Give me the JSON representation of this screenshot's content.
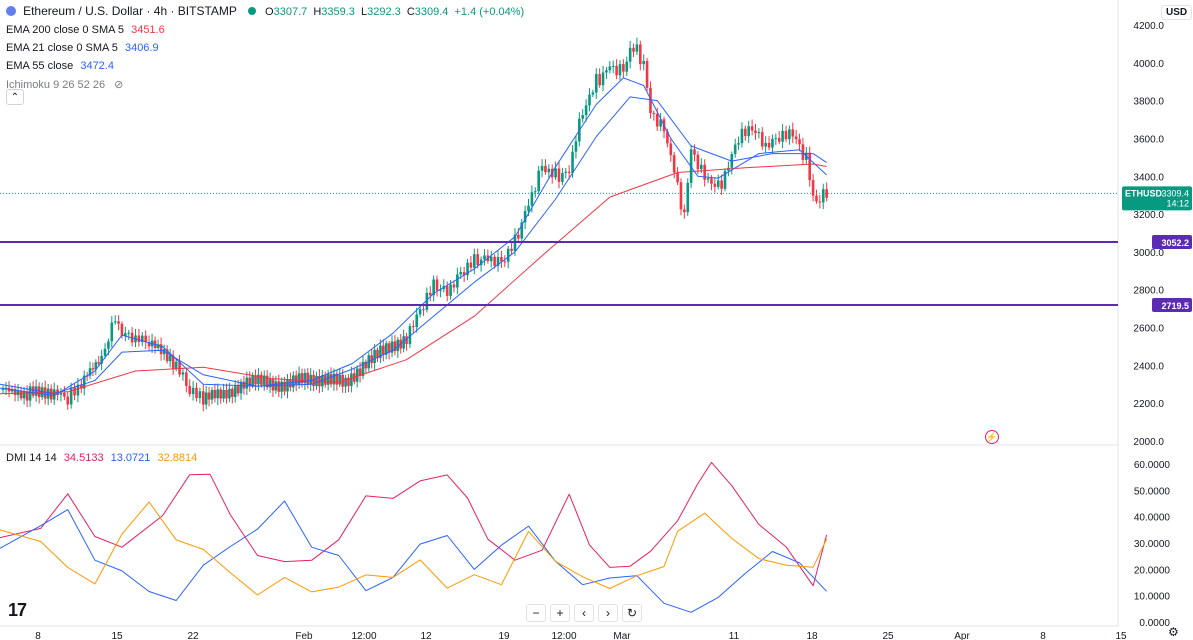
{
  "header": {
    "symbol": "Ethereum / U.S. Dollar · 4h · BITSTAMP",
    "open_label": "O",
    "open": "3307.7",
    "high_label": "H",
    "high": "3359.3",
    "low_label": "L",
    "low": "3292.3",
    "close_label": "C",
    "close": "3309.4",
    "change": "+1.4 (+0.04%)",
    "currency": "USD"
  },
  "indicators": [
    {
      "label": "EMA 200 close 0 SMA 5",
      "value": "3451.6",
      "color": "#f23645"
    },
    {
      "label": "EMA 21 close 0 SMA 5",
      "value": "3406.9",
      "color": "#2962ff"
    },
    {
      "label": "EMA 55 close",
      "value": "3472.4",
      "color": "#2962ff"
    },
    {
      "label": "Ichimoku 9 26 52 26",
      "value": "",
      "color": "#131722"
    }
  ],
  "dmi_legend": {
    "label": "DMI 14 14",
    "plus": "34.5133",
    "plus_color": "#e91e63",
    "minus": "13.0721",
    "minus_color": "#2962ff",
    "adx": "32.8814",
    "adx_color": "#ff9800"
  },
  "price_scale": [
    "4200.0",
    "4000.0",
    "3800.0",
    "3600.0",
    "3400.0",
    "3200.0",
    "3000.0",
    "2800.0",
    "2600.0",
    "2400.0",
    "2200.0",
    "2000.0"
  ],
  "dmi_scale": [
    "60.0000",
    "50.0000",
    "40.0000",
    "30.0000",
    "20.0000",
    "10.0000",
    "0.0000"
  ],
  "time_axis": [
    "8",
    "15",
    "22",
    "Feb",
    "12:00",
    "12",
    "19",
    "12:00",
    "Mar",
    "11",
    "18",
    "25",
    "Apr",
    "8",
    "15"
  ],
  "price_tags": {
    "last": {
      "symbol": "ETHUSD",
      "price": "3309.4",
      "countdown": "14:12"
    },
    "level_upper": "3052.2",
    "level_lower": "2719.5"
  },
  "logo_text": "17",
  "zoom_controls": [
    "−",
    "+",
    "‹",
    "›",
    "↻"
  ],
  "chart_data": {
    "type": "line",
    "title": "Ethereum / U.S. Dollar · 4h · BITSTAMP",
    "x_ticks": [
      "8",
      "15",
      "22",
      "Feb",
      "12:00",
      "12",
      "19",
      "12:00",
      "Mar",
      "11",
      "18",
      "25",
      "Apr",
      "8",
      "15"
    ],
    "ylim": [
      2000,
      4200
    ],
    "horizontal_levels": [
      3052.2,
      2719.5
    ],
    "price_path": [
      [
        0,
        2270
      ],
      [
        4,
        2250
      ],
      [
        8,
        2260
      ],
      [
        10,
        2225
      ],
      [
        12,
        2300
      ],
      [
        15,
        2450
      ],
      [
        17,
        2650
      ],
      [
        18,
        2560
      ],
      [
        20,
        2540
      ],
      [
        22,
        2520
      ],
      [
        26,
        2400
      ],
      [
        28,
        2260
      ],
      [
        30,
        2220
      ],
      [
        33,
        2250
      ],
      [
        36,
        2300
      ],
      [
        39,
        2320
      ],
      [
        42,
        2290
      ],
      [
        45,
        2330
      ],
      [
        48,
        2330
      ],
      [
        51,
        2300
      ],
      [
        54,
        2420
      ],
      [
        57,
        2480
      ],
      [
        60,
        2550
      ],
      [
        62,
        2680
      ],
      [
        64,
        2820
      ],
      [
        66,
        2780
      ],
      [
        68,
        2880
      ],
      [
        70,
        2950
      ],
      [
        72,
        2960
      ],
      [
        74,
        2940
      ],
      [
        76,
        3050
      ],
      [
        78,
        3250
      ],
      [
        80,
        3450
      ],
      [
        82,
        3400
      ],
      [
        84,
        3420
      ],
      [
        85,
        3600
      ],
      [
        86,
        3750
      ],
      [
        88,
        3900
      ],
      [
        90,
        3980
      ],
      [
        92,
        3960
      ],
      [
        93,
        4060
      ],
      [
        94,
        4080
      ],
      [
        95,
        3980
      ],
      [
        96,
        3750
      ],
      [
        98,
        3650
      ],
      [
        99,
        3500
      ],
      [
        100,
        3350
      ],
      [
        101,
        3180
      ],
      [
        102,
        3550
      ],
      [
        104,
        3400
      ],
      [
        106,
        3350
      ],
      [
        107,
        3400
      ],
      [
        109,
        3600
      ],
      [
        111,
        3650
      ],
      [
        113,
        3550
      ],
      [
        115,
        3600
      ],
      [
        117,
        3620
      ],
      [
        118,
        3550
      ],
      [
        119,
        3500
      ],
      [
        120,
        3280
      ],
      [
        121,
        3280
      ],
      [
        122,
        3309
      ]
    ],
    "series": [
      {
        "name": "EMA 200 close 0 SMA 5",
        "color": "#f23645",
        "points": [
          [
            0,
            2250
          ],
          [
            10,
            2260
          ],
          [
            20,
            2370
          ],
          [
            30,
            2390
          ],
          [
            40,
            2330
          ],
          [
            50,
            2310
          ],
          [
            60,
            2430
          ],
          [
            70,
            2660
          ],
          [
            80,
            2980
          ],
          [
            90,
            3290
          ],
          [
            100,
            3420
          ],
          [
            110,
            3445
          ],
          [
            120,
            3465
          ],
          [
            122,
            3451.6
          ]
        ]
      },
      {
        "name": "EMA 21 close 0 SMA 5",
        "color": "#2962ff",
        "points": [
          [
            0,
            2280
          ],
          [
            8,
            2240
          ],
          [
            14,
            2370
          ],
          [
            18,
            2560
          ],
          [
            24,
            2500
          ],
          [
            30,
            2300
          ],
          [
            38,
            2290
          ],
          [
            46,
            2320
          ],
          [
            52,
            2410
          ],
          [
            58,
            2570
          ],
          [
            64,
            2780
          ],
          [
            70,
            2910
          ],
          [
            76,
            3080
          ],
          [
            82,
            3450
          ],
          [
            88,
            3780
          ],
          [
            92,
            3920
          ],
          [
            95,
            3880
          ],
          [
            99,
            3600
          ],
          [
            103,
            3400
          ],
          [
            106,
            3390
          ],
          [
            112,
            3520
          ],
          [
            118,
            3540
          ],
          [
            122,
            3406.9
          ]
        ]
      },
      {
        "name": "EMA 55 close",
        "color": "#2962ff",
        "points": [
          [
            0,
            2300
          ],
          [
            8,
            2250
          ],
          [
            14,
            2320
          ],
          [
            18,
            2470
          ],
          [
            24,
            2480
          ],
          [
            30,
            2350
          ],
          [
            38,
            2290
          ],
          [
            46,
            2300
          ],
          [
            52,
            2380
          ],
          [
            58,
            2480
          ],
          [
            64,
            2660
          ],
          [
            70,
            2840
          ],
          [
            76,
            3000
          ],
          [
            82,
            3280
          ],
          [
            88,
            3610
          ],
          [
            93,
            3820
          ],
          [
            97,
            3800
          ],
          [
            102,
            3560
          ],
          [
            108,
            3480
          ],
          [
            114,
            3520
          ],
          [
            120,
            3520
          ],
          [
            122,
            3472.4
          ]
        ]
      }
    ],
    "dmi": {
      "ylim": [
        0,
        60
      ],
      "series": [
        {
          "name": "DMI +",
          "color": "#e91e63",
          "value": "34.5133",
          "points": [
            [
              0,
              32
            ],
            [
              6,
              35
            ],
            [
              10,
              48
            ],
            [
              14,
              34
            ],
            [
              18,
              27
            ],
            [
              24,
              42
            ],
            [
              28,
              55
            ],
            [
              31,
              55
            ],
            [
              34,
              42
            ],
            [
              38,
              25
            ],
            [
              42,
              22
            ],
            [
              46,
              25
            ],
            [
              50,
              30
            ],
            [
              54,
              48
            ],
            [
              58,
              48
            ],
            [
              62,
              52
            ],
            [
              66,
              57
            ],
            [
              69,
              48
            ],
            [
              72,
              30
            ],
            [
              76,
              24
            ],
            [
              80,
              28
            ],
            [
              84,
              47
            ],
            [
              87,
              30
            ],
            [
              90,
              22
            ],
            [
              93,
              20
            ],
            [
              96,
              26
            ],
            [
              100,
              40
            ],
            [
              103,
              52
            ],
            [
              105,
              59
            ],
            [
              108,
              52
            ],
            [
              112,
              38
            ],
            [
              116,
              27
            ],
            [
              120,
              15
            ],
            [
              122,
              34.5
            ]
          ]
        },
        {
          "name": "DMI −",
          "color": "#2962ff",
          "value": "13.0721",
          "points": [
            [
              0,
              28
            ],
            [
              6,
              36
            ],
            [
              10,
              42
            ],
            [
              14,
              25
            ],
            [
              18,
              18
            ],
            [
              22,
              12
            ],
            [
              26,
              9
            ],
            [
              30,
              20
            ],
            [
              34,
              30
            ],
            [
              38,
              35
            ],
            [
              42,
              45
            ],
            [
              46,
              30
            ],
            [
              50,
              24
            ],
            [
              54,
              12
            ],
            [
              58,
              18
            ],
            [
              62,
              28
            ],
            [
              66,
              34
            ],
            [
              70,
              20
            ],
            [
              74,
              28
            ],
            [
              78,
              38
            ],
            [
              82,
              22
            ],
            [
              86,
              14
            ],
            [
              90,
              18
            ],
            [
              94,
              16
            ],
            [
              98,
              8
            ],
            [
              102,
              4
            ],
            [
              106,
              8
            ],
            [
              110,
              20
            ],
            [
              114,
              26
            ],
            [
              118,
              22
            ],
            [
              122,
              13.1
            ]
          ]
        },
        {
          "name": "ADX",
          "color": "#ff9800",
          "value": "32.8814",
          "points": [
            [
              0,
              35
            ],
            [
              6,
              30
            ],
            [
              10,
              20
            ],
            [
              14,
              16
            ],
            [
              18,
              32
            ],
            [
              22,
              46
            ],
            [
              26,
              32
            ],
            [
              30,
              26
            ],
            [
              34,
              20
            ],
            [
              38,
              10
            ],
            [
              42,
              16
            ],
            [
              46,
              13
            ],
            [
              50,
              12
            ],
            [
              54,
              18
            ],
            [
              58,
              18
            ],
            [
              62,
              22
            ],
            [
              66,
              14
            ],
            [
              70,
              18
            ],
            [
              74,
              13
            ],
            [
              78,
              36
            ],
            [
              82,
              22
            ],
            [
              86,
              17
            ],
            [
              90,
              14
            ],
            [
              94,
              16
            ],
            [
              98,
              22
            ],
            [
              100,
              36
            ],
            [
              104,
              40
            ],
            [
              108,
              32
            ],
            [
              112,
              25
            ],
            [
              116,
              20
            ],
            [
              120,
              22
            ],
            [
              122,
              32.9
            ]
          ]
        }
      ]
    }
  }
}
